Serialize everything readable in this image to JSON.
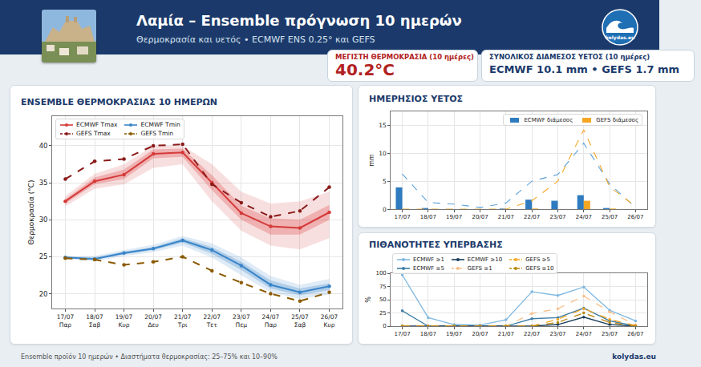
{
  "header": {
    "title": "Λαμία – Ensemble πρόγνωση 10 ημερών",
    "subtitle": "Θερμοκρασία και υετός • ECMWF ENS 0.25° και GEFS",
    "logo": "kolydas.eu"
  },
  "info_boxes": [
    {
      "label": "ΜΕΓΙΣΤΗ ΘΕΡΜΟΚΡΑΣΙΑ (10 ημέρες)",
      "value": "40.2°C",
      "color": "#b22222"
    },
    {
      "label": "ΣΥΝΟΛΙΚΟΣ ΔΙΑΜΕΣΟΣ ΥΕΤΟΣ (10 ημέρες)",
      "value": "ECMWF 10.1 mm • GEFS 1.7 mm",
      "color": "#1a3a6b"
    }
  ],
  "footer": {
    "left": "Ensemble προϊόν 10 ημερών • Διαστήματα θερμοκρασίας: 25–75% και 10–90%",
    "right": "kolydas.eu"
  },
  "chart_data": [
    {
      "type": "line",
      "title": "ENSEMBLE ΘΕΡΜΟΚΡΑΣΙΑΣ 10 ΗΜΕΡΩΝ",
      "y_label": "Θερμοκρασία (°C)",
      "categories": [
        "17/07\nΠαρ",
        "18/07\nΣαβ",
        "19/07\nΚυρ",
        "20/07\nΔευ",
        "21/07\nΤρι",
        "22/07\nΤετ",
        "23/07\nΠεμ",
        "24/07\nΠαρ",
        "25/07\nΣαβ",
        "26/07\nΚυρ"
      ],
      "ylim": [
        18,
        44
      ],
      "yticks": [
        20,
        25,
        30,
        35,
        40
      ],
      "grid": true,
      "legend": "upper left",
      "series": [
        {
          "name": "ECMWF Tmax",
          "color": "#d63a3a",
          "line_style": "solid",
          "marker": "circle",
          "values": [
            32.5,
            35.2,
            36.1,
            38.9,
            39.1,
            35.0,
            30.9,
            29.1,
            28.9,
            31.0
          ],
          "band_10_90": {
            "low": [
              31.8,
              34.2,
              34.8,
              37.0,
              37.5,
              32.5,
              28.5,
              26.5,
              26.0,
              27.5
            ],
            "high": [
              33.2,
              36.2,
              37.5,
              40.0,
              40.0,
              37.5,
              33.8,
              32.2,
              32.5,
              33.8
            ]
          },
          "band_25_75": {
            "low": [
              32.2,
              34.8,
              35.5,
              38.3,
              38.5,
              34.0,
              30.0,
              28.0,
              28.0,
              30.0
            ],
            "high": [
              32.8,
              35.7,
              36.8,
              39.5,
              39.6,
              36.0,
              31.9,
              30.2,
              30.0,
              32.0
            ]
          }
        },
        {
          "name": "GEFS Tmax",
          "color": "#8b1a1a",
          "line_style": "dashed",
          "marker": "circle",
          "values": [
            35.5,
            37.9,
            38.2,
            40.0,
            40.2,
            34.8,
            32.3,
            30.4,
            31.2,
            34.4
          ]
        },
        {
          "name": "ECMWF Tmin",
          "color": "#3a85c8",
          "line_style": "solid",
          "marker": "circle",
          "values": [
            24.9,
            24.7,
            25.5,
            26.1,
            27.2,
            25.9,
            23.8,
            21.2,
            20.2,
            21.0
          ],
          "band_10_90": {
            "low": [
              24.7,
              24.4,
              25.1,
              25.6,
              26.5,
              24.9,
              22.5,
              20.2,
              19.3,
              19.9
            ],
            "high": [
              25.1,
              25.1,
              25.9,
              26.6,
              27.8,
              26.8,
              24.9,
              22.4,
              21.2,
              22.0
            ]
          },
          "band_25_75": {
            "low": [
              24.8,
              24.6,
              25.3,
              25.9,
              26.9,
              25.4,
              23.2,
              20.7,
              19.8,
              20.5
            ],
            "high": [
              25.0,
              24.9,
              25.7,
              26.3,
              27.5,
              26.3,
              24.3,
              21.8,
              20.7,
              21.4
            ]
          }
        },
        {
          "name": "GEFS Tmin",
          "color": "#8b5a00",
          "line_style": "dashed",
          "marker": "circle",
          "values": [
            24.8,
            24.6,
            23.9,
            24.3,
            25.0,
            23.1,
            21.5,
            20.0,
            19.0,
            20.2
          ]
        }
      ]
    },
    {
      "type": "bar",
      "title": "ΗΜΕΡΗΣΙΟΣ ΥΕΤΟΣ",
      "y_label": "mm",
      "categories": [
        "17/07",
        "18/07",
        "19/07",
        "20/07",
        "21/07",
        "22/07",
        "23/07",
        "24/07",
        "25/07",
        "26/07"
      ],
      "ylim": [
        0,
        17.5
      ],
      "yticks": [
        0,
        5,
        10,
        15
      ],
      "grid": true,
      "legend": "upper right",
      "series": [
        {
          "name": "ECMWF διάμεσος",
          "color": "#2e7bbf",
          "type": "bar",
          "values": [
            3.9,
            0.2,
            0,
            0,
            0.1,
            1.7,
            1.5,
            2.5,
            0.2,
            0
          ]
        },
        {
          "name": "GEFS διάμεσος",
          "color": "#f5a623",
          "type": "bar",
          "values": [
            0,
            0,
            0,
            0,
            0,
            0.1,
            0,
            1.5,
            0.1,
            0
          ]
        },
        {
          "color": "#5aa0d8",
          "type": "line",
          "line_style": "dashed",
          "values": [
            6.3,
            1.2,
            0.9,
            0.3,
            1.1,
            5.0,
            6.2,
            11.8,
            4.5,
            0.3
          ]
        },
        {
          "color": "#f5a623",
          "type": "line",
          "line_style": "dashed",
          "values": [
            0,
            0,
            0,
            0,
            0,
            1.5,
            5.0,
            14.2,
            4.0,
            0.5
          ]
        }
      ]
    },
    {
      "type": "line",
      "title": "ΠΙΘΑΝΟΤΗΤΕΣ ΥΠΕΡΒΑΣΗΣ",
      "y_label": "%",
      "categories": [
        "17/07",
        "18/07",
        "19/07",
        "20/07",
        "21/07",
        "22/07",
        "23/07",
        "24/07",
        "25/07",
        "26/07"
      ],
      "ylim": [
        0,
        100
      ],
      "yticks": [
        0,
        25,
        50,
        75,
        100
      ],
      "grid": true,
      "legend": "top",
      "series": [
        {
          "name": "ECMWF ≥1",
          "color": "#7fb8e0",
          "line_style": "solid",
          "marker": "circle",
          "values": [
            97,
            16,
            3,
            2,
            12,
            65,
            58,
            74,
            30,
            10
          ]
        },
        {
          "name": "ECMWF ≥5",
          "color": "#3d7ea6",
          "line_style": "solid",
          "marker": "circle",
          "values": [
            29,
            0,
            0,
            0,
            0,
            14,
            16,
            34,
            10,
            0
          ]
        },
        {
          "name": "ECMWF ≥10",
          "color": "#1a3d5c",
          "line_style": "solid",
          "marker": "circle",
          "values": [
            0,
            0,
            0,
            0,
            0,
            0,
            3,
            17,
            3,
            0
          ]
        },
        {
          "name": "GEFS ≥1",
          "color": "#f7c08a",
          "line_style": "dashed",
          "marker": "circle",
          "values": [
            0,
            0,
            0,
            0,
            0,
            24,
            33,
            57,
            27,
            2
          ]
        },
        {
          "name": "GEFS ≥5",
          "color": "#f5a623",
          "line_style": "dashed",
          "marker": "circle",
          "values": [
            0,
            0,
            0,
            0,
            0,
            0,
            13,
            33,
            13,
            1
          ]
        },
        {
          "name": "GEFS ≥10",
          "color": "#b8860b",
          "line_style": "dashed",
          "marker": "circle",
          "values": [
            0,
            0,
            0,
            0,
            0,
            0,
            7,
            25,
            7,
            0
          ]
        }
      ]
    }
  ]
}
